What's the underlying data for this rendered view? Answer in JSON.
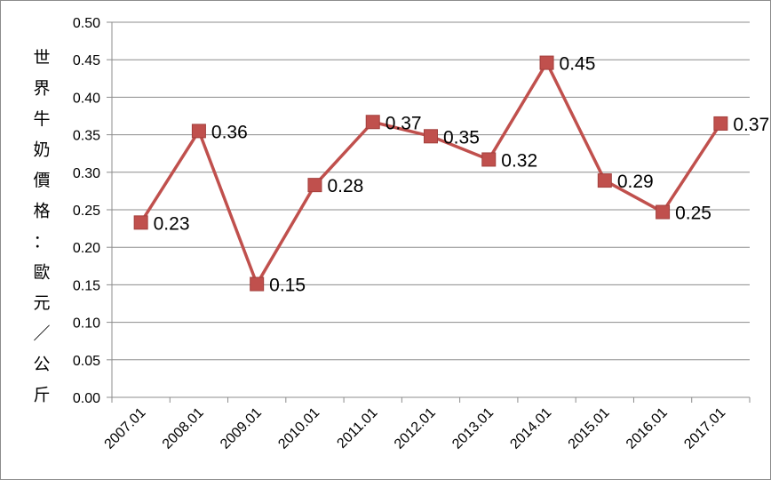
{
  "chart_data": {
    "type": "line",
    "ylabel": "世界牛奶價格：歐元／公斤",
    "xlabel": "",
    "categories": [
      "2007.01",
      "2008.01",
      "2009.01",
      "2010.01",
      "2011.01",
      "2012.01",
      "2013.01",
      "2014.01",
      "2015.01",
      "2016.01",
      "2017.01"
    ],
    "series": [
      {
        "values": [
          0.233,
          0.355,
          0.151,
          0.283,
          0.367,
          0.348,
          0.317,
          0.446,
          0.289,
          0.247,
          0.365
        ],
        "data_labels": [
          "0.23",
          "0.36",
          "0.15",
          "0.28",
          "0.37",
          "0.35",
          "0.32",
          "0.45",
          "0.29",
          "0.25",
          "0.37"
        ],
        "color": "#C0504D",
        "marker": "square"
      }
    ],
    "ylim": [
      0,
      0.5
    ],
    "yticks": [
      "0.00",
      "0.05",
      "0.10",
      "0.15",
      "0.20",
      "0.25",
      "0.30",
      "0.35",
      "0.40",
      "0.45",
      "0.50"
    ],
    "grid": true,
    "legend": "none"
  }
}
